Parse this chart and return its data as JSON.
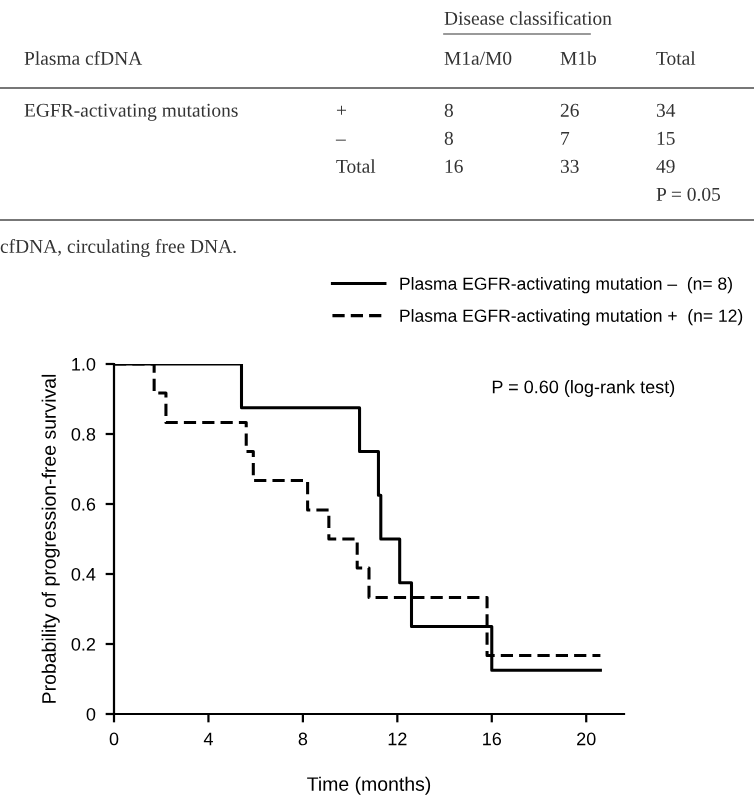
{
  "chart_data": [
    {
      "type": "other",
      "annotations": [
        "Disease classification",
        "Plasma cfDNA",
        "M1a/M0",
        "M1b",
        "Total",
        "EGFR-activating mutations",
        "+",
        "8",
        "26",
        "34",
        "–",
        "8",
        "7",
        "15",
        "Total",
        "16",
        "33",
        "49",
        "P = 0.05",
        "cfDNA, circulating free DNA."
      ]
    },
    {
      "type": "step",
      "xlabel": "Time (months)",
      "ylabel": "Probability of progression-free survival",
      "series": [
        {
          "name": "Plasma EGFR-activating mutation –  (n= 8)",
          "color": "#000000",
          "line_style": "solid",
          "x": [
            0,
            5.4,
            10.4,
            11.2,
            11.3,
            12.1,
            12.6,
            16.0,
            20.6
          ],
          "values": [
            1,
            0.875,
            0.75,
            0.625,
            0.5,
            0.375,
            0.25,
            0.125,
            0.125
          ]
        },
        {
          "name": "Plasma EGFR-activating mutation +  (n= 12)",
          "color": "#000000",
          "line_style": "dashed",
          "x": [
            0,
            1.7,
            2.2,
            5.6,
            5.9,
            8.2,
            9.1,
            10.3,
            10.8,
            15.8,
            20.6
          ],
          "values": [
            1,
            0.917,
            0.833,
            0.75,
            0.667,
            0.583,
            0.5,
            0.417,
            0.333,
            0.167,
            0.167
          ]
        }
      ],
      "xlim": [
        0,
        21.6
      ],
      "ylim": [
        0,
        1.0
      ],
      "xticks": [
        0,
        4,
        8,
        12,
        16,
        20
      ],
      "yticks": [
        0,
        0.2,
        0.4,
        0.6,
        0.8,
        {
          "value": 1.0,
          "label": "1.0"
        }
      ],
      "legend": "top right",
      "grid": false,
      "annotations": [
        "P = 0.60 (log-rank test)"
      ]
    }
  ]
}
